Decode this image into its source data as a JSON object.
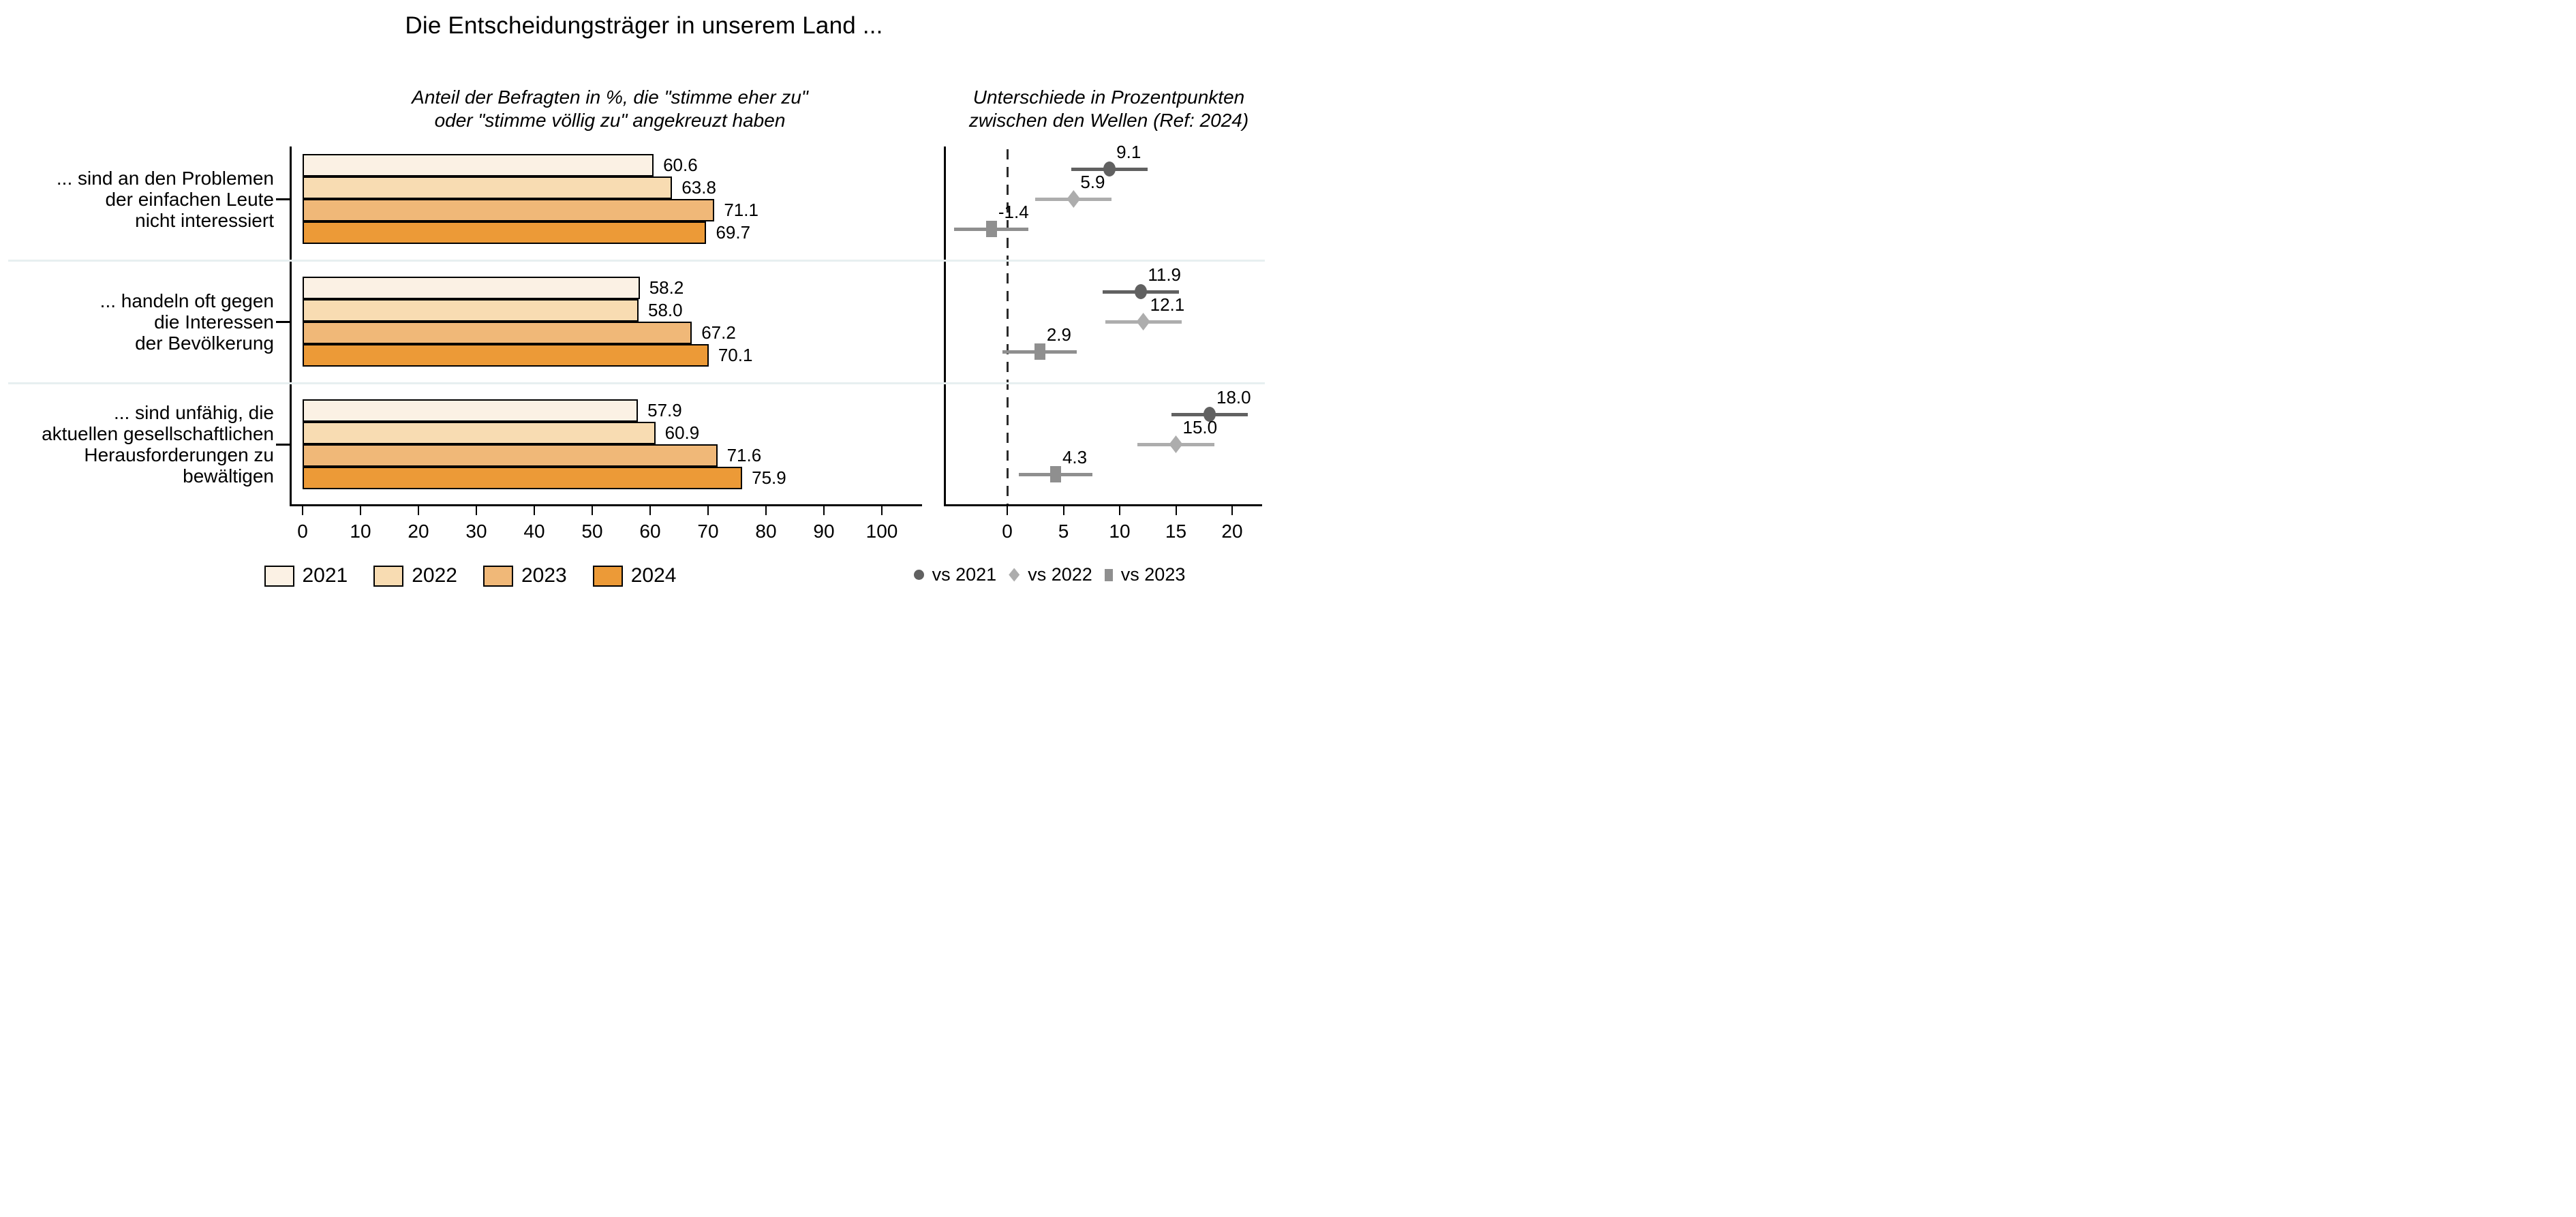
{
  "title": "Die Entscheidungsträger in unserem Land ...",
  "panels": {
    "left": {
      "subtitle_line1": "Anteil der Befragten in %, die \"stimme eher zu\"",
      "subtitle_line2": "oder \"stimme völlig zu\" angekreuzt haben"
    },
    "right": {
      "subtitle_line1": "Unterschiede in Prozentpunkten",
      "subtitle_line2": "zwischen den Wellen (Ref: 2024)"
    }
  },
  "chart_data": [
    {
      "type": "bar",
      "orientation": "horizontal",
      "title": "Anteil der Befragten in %, die \"stimme eher zu\" oder \"stimme völlig zu\" angekreuzt haben",
      "categories": [
        "... sind an den Problemen der einfachen Leute nicht interessiert",
        "... handeln oft gegen die Interessen der Bevölkerung",
        "... sind unfähig, die aktuellen gesellschaftlichen Herausforderungen zu bewältigen"
      ],
      "category_lines": [
        [
          "... sind an den Problemen",
          "der einfachen Leute",
          "nicht interessiert"
        ],
        [
          "... handeln oft gegen",
          "die Interessen",
          "der Bevölkerung"
        ],
        [
          "... sind unfähig, die",
          "aktuellen gesellschaftlichen",
          "Herausforderungen zu",
          "bewältigen"
        ]
      ],
      "series": [
        {
          "name": "2021",
          "color": "#FBF1E4",
          "values": [
            60.6,
            58.2,
            57.9
          ]
        },
        {
          "name": "2022",
          "color": "#F8DCB2",
          "values": [
            63.8,
            58.0,
            60.9
          ]
        },
        {
          "name": "2023",
          "color": "#F0B878",
          "values": [
            71.1,
            67.2,
            71.6
          ]
        },
        {
          "name": "2024",
          "color": "#EC9A37",
          "values": [
            69.7,
            70.1,
            75.9
          ]
        }
      ],
      "bar_outline_color": "#000000",
      "xlim": [
        0,
        100
      ],
      "xticks": [
        0,
        10,
        20,
        30,
        40,
        50,
        60,
        70,
        80,
        90,
        100
      ],
      "grid": false,
      "legend_position": "bottom"
    },
    {
      "type": "scatter",
      "subtype": "dot-with-ci",
      "title": "Unterschiede in Prozentpunkten zwischen den Wellen (Ref: 2024)",
      "categories": [
        "... sind an den Problemen der einfachen Leute nicht interessiert",
        "... handeln oft gegen die Interessen der Bevölkerung",
        "... sind unfähig, die aktuellen gesellschaftlichen Herausforderungen zu bewältigen"
      ],
      "series": [
        {
          "name": "vs 2021",
          "marker": "circle",
          "color": "#616161",
          "values": [
            9.1,
            11.9,
            18.0
          ],
          "ci_halfwidth": 3.4
        },
        {
          "name": "vs 2022",
          "marker": "diamond",
          "color": "#ADADAD",
          "values": [
            5.9,
            12.1,
            15.0
          ],
          "ci_halfwidth": 3.4
        },
        {
          "name": "vs 2023",
          "marker": "square",
          "color": "#8F8F8F",
          "values": [
            -1.4,
            2.9,
            4.3
          ],
          "ci_halfwidth": 3.3
        }
      ],
      "ref_line": 0,
      "xlim": [
        -6,
        22.5
      ],
      "xticks": [
        0,
        5,
        10,
        15,
        20
      ],
      "grid": false,
      "legend_position": "bottom"
    }
  ],
  "colors": {
    "separator": "#E7EFF0",
    "axis": "#000000",
    "ref_line": "#2B2B2B"
  }
}
